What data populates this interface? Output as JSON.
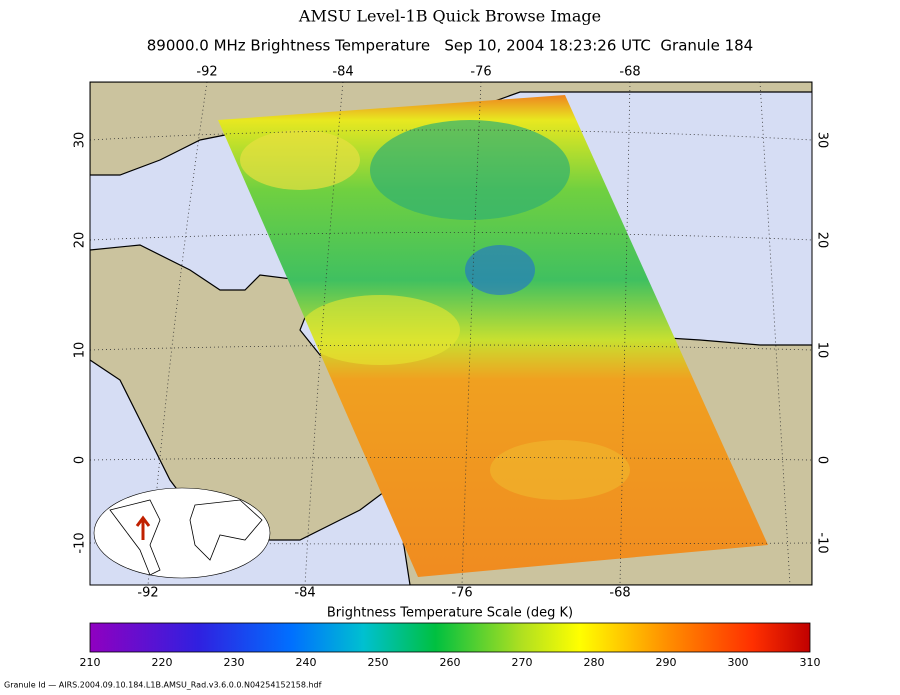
{
  "header": {
    "title": "AMSU Level-1B Quick Browse Image",
    "subtitle": "89000.0 MHz Brightness Temperature   Sep 10, 2004 18:23:26 UTC  Granule 184"
  },
  "map": {
    "lon_labels_top": [
      "-92",
      "-84",
      "-76",
      "-68"
    ],
    "lon_labels_bottom": [
      "-92",
      "-84",
      "-76",
      "-68"
    ],
    "lat_labels_left": [
      "30",
      "20",
      "10",
      "0",
      "-10"
    ],
    "lat_labels_right": [
      "30",
      "20",
      "10",
      "0",
      "-10"
    ]
  },
  "colorbar": {
    "title": "Brightness Temperature Scale (deg K)",
    "ticks": [
      "210",
      "220",
      "230",
      "240",
      "250",
      "260",
      "270",
      "280",
      "290",
      "300",
      "310"
    ]
  },
  "footer": "Granule Id — AIRS.2004.09.10.184.L1B.AMSU_Rad.v3.6.0.0.N04254152158.hdf"
}
